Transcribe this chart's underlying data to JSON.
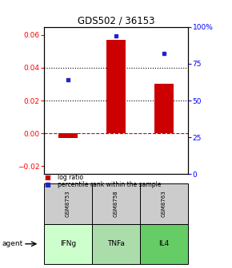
{
  "title": "GDS502 / 36153",
  "samples": [
    "GSM8753",
    "GSM8758",
    "GSM8763"
  ],
  "agents": [
    "IFNg",
    "TNFa",
    "IL4"
  ],
  "log_ratios": [
    -0.003,
    0.057,
    0.03
  ],
  "percentile_ranks": [
    64,
    94,
    82
  ],
  "bar_color": "#cc0000",
  "dot_color": "#2222cc",
  "ylim_left": [
    -0.025,
    0.065
  ],
  "ylim_right": [
    0,
    100
  ],
  "left_yticks": [
    -0.02,
    0.0,
    0.02,
    0.04,
    0.06
  ],
  "right_yticks": [
    0,
    25,
    50,
    75,
    100
  ],
  "right_yticklabels": [
    "0",
    "25",
    "50",
    "75",
    "100%"
  ],
  "dotted_lines": [
    0.02,
    0.04
  ],
  "zero_line_color": "#cc0000",
  "sample_bg_color": "#cccccc",
  "agent_colors": [
    "#ccffcc",
    "#aaddaa",
    "#66cc66"
  ],
  "legend_bar_label": "log ratio",
  "legend_dot_label": "percentile rank within the sample",
  "xlabel_agent": "agent"
}
